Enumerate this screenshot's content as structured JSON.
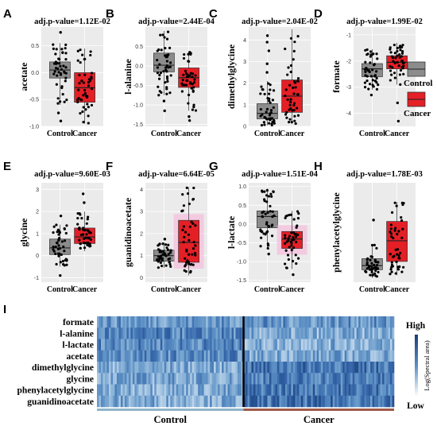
{
  "chart_data": [
    {
      "type": "box",
      "panel": "A",
      "title": "adj.p-value=1.12E-02",
      "ylabel": "acetate",
      "categories": [
        "Control",
        "Cancer"
      ],
      "ylim": [
        -1.0,
        0.85
      ],
      "yticks": [
        0.5,
        0.0,
        -0.5,
        -1.0
      ],
      "ytick_labels": [
        "0.5",
        "0.0",
        "-0.5",
        "-1.0"
      ],
      "series": [
        {
          "name": "Control",
          "q1": -0.1,
          "median": 0.05,
          "q3": 0.2,
          "whisker_low": -0.6,
          "whisker_high": 0.55,
          "outliers": [
            -0.75,
            -0.9,
            0.75
          ]
        },
        {
          "name": "Cancer",
          "q1": -0.55,
          "median": -0.28,
          "q3": 0.0,
          "whisker_low": -0.95,
          "whisker_high": 0.45,
          "outliers": []
        }
      ]
    },
    {
      "type": "box",
      "panel": "B",
      "title": "adj.p-value=2.44E-04",
      "ylabel": "l-alanine",
      "categories": [
        "Control",
        "Cancer"
      ],
      "ylim": [
        -1.55,
        1.0
      ],
      "yticks": [
        0.5,
        0.0,
        -0.5,
        -1.0,
        -1.5
      ],
      "ytick_labels": [
        "0.5",
        "0.0",
        "-0.5",
        "-1.0",
        "-1.5"
      ],
      "series": [
        {
          "name": "Control",
          "q1": -0.15,
          "median": 0.02,
          "q3": 0.33,
          "whisker_low": -0.75,
          "whisker_high": 0.9,
          "outliers": [
            -0.9,
            -1.15
          ]
        },
        {
          "name": "Cancer",
          "q1": -0.55,
          "median": -0.3,
          "q3": -0.05,
          "whisker_low": -1.15,
          "whisker_high": 0.38,
          "outliers": [
            -1.3,
            -1.4
          ]
        }
      ]
    },
    {
      "type": "box",
      "panel": "C",
      "title": "adj.p-value=2.04E-02",
      "ylabel": "dimethylglycine",
      "categories": [
        "Control",
        "Cancer"
      ],
      "ylim": [
        0,
        4.6
      ],
      "yticks": [
        0,
        1,
        2,
        3,
        4
      ],
      "ytick_labels": [
        "0",
        "1",
        "2",
        "3",
        "4"
      ],
      "series": [
        {
          "name": "Control",
          "q1": 0.35,
          "median": 0.6,
          "q3": 1.05,
          "whisker_low": 0.05,
          "whisker_high": 2.1,
          "outliers": [
            2.5,
            2.9,
            3.5,
            3.9,
            4.2
          ]
        },
        {
          "name": "Cancer",
          "q1": 0.65,
          "median": 1.4,
          "q3": 2.15,
          "whisker_low": 0.1,
          "whisker_high": 4.5,
          "outliers": []
        }
      ]
    },
    {
      "type": "box",
      "panel": "D",
      "title": "adj.p-value=1.99E-02",
      "ylabel": "formate",
      "categories": [
        "Control",
        "Cancer"
      ],
      "ylim": [
        -4.5,
        -0.7
      ],
      "yticks": [
        -1,
        -2,
        -3,
        -4
      ],
      "ytick_labels": [
        "-1",
        "-2",
        "-3",
        "-4"
      ],
      "series": [
        {
          "name": "Control",
          "q1": -2.6,
          "median": -2.3,
          "q3": -2.1,
          "whisker_low": -3.1,
          "whisker_high": -1.55,
          "outliers": [
            -3.3
          ]
        },
        {
          "name": "Cancer",
          "q1": -2.3,
          "median": -2.05,
          "q3": -1.8,
          "whisker_low": -2.9,
          "whisker_high": -1.3,
          "outliers": [
            -3.6,
            -4.3
          ]
        }
      ]
    },
    {
      "type": "box",
      "panel": "E",
      "title": "adj.p-value=9.60E-03",
      "ylabel": "glycine",
      "categories": [
        "Control",
        "Cancer"
      ],
      "ylim": [
        -1.2,
        3.3
      ],
      "yticks": [
        3,
        2,
        1,
        0,
        -1
      ],
      "ytick_labels": [
        "3",
        "2",
        "1",
        "0",
        "-1"
      ],
      "series": [
        {
          "name": "Control",
          "q1": 0.05,
          "median": 0.35,
          "q3": 0.75,
          "whisker_low": -0.5,
          "whisker_high": 1.4,
          "outliers": [
            -0.9,
            1.8
          ]
        },
        {
          "name": "Cancer",
          "q1": 0.55,
          "median": 0.85,
          "q3": 1.25,
          "whisker_low": 0.2,
          "whisker_high": 2.0,
          "outliers": [
            2.4,
            2.8
          ]
        }
      ]
    },
    {
      "type": "box",
      "panel": "F",
      "title": "adj.p-value=6.64E-05",
      "ylabel": "guanidinoacetate",
      "categories": [
        "Control",
        "Cancer"
      ],
      "ylim": [
        -0.2,
        4.3
      ],
      "yticks": [
        0,
        1,
        2,
        3,
        4
      ],
      "ytick_labels": [
        "0",
        "1",
        "2",
        "3",
        "4"
      ],
      "series": [
        {
          "name": "Control",
          "q1": 0.75,
          "median": 1.0,
          "q3": 1.25,
          "whisker_low": 0.45,
          "whisker_high": 1.6,
          "outliers": [
            1.75
          ]
        },
        {
          "name": "Cancer",
          "q1": 0.7,
          "median": 1.6,
          "q3": 2.6,
          "whisker_low": 0.1,
          "whisker_high": 4.1,
          "outliers": []
        }
      ]
    },
    {
      "type": "box",
      "panel": "G",
      "title": "adj.p-value=1.51E-04",
      "ylabel": "l-lactate",
      "categories": [
        "Control",
        "Cancer"
      ],
      "ylim": [
        -1.55,
        1.1
      ],
      "yticks": [
        1.0,
        0.5,
        0.0,
        -0.5,
        -1.0,
        -1.5
      ],
      "ytick_labels": [
        "1.0",
        "0.5",
        "0.0",
        "-0.5",
        "-1.0",
        "-1.5"
      ],
      "series": [
        {
          "name": "Control",
          "q1": -0.1,
          "median": 0.2,
          "q3": 0.35,
          "whisker_low": -0.65,
          "whisker_high": 0.95,
          "outliers": [
            -0.8
          ]
        },
        {
          "name": "Cancer",
          "q1": -0.65,
          "median": -0.4,
          "q3": -0.2,
          "whisker_low": -1.2,
          "whisker_high": 0.35,
          "outliers": [
            -1.35
          ]
        }
      ]
    },
    {
      "type": "box",
      "panel": "H",
      "title": "adj.p-value=1.78E-03",
      "ylabel": "phenylacetylglycine",
      "categories": [
        "Control",
        "Cancer"
      ],
      "ylim": [
        0.1,
        3.7
      ],
      "yticks": [],
      "ytick_labels": [],
      "series": [
        {
          "name": "Control",
          "q1": 0.55,
          "median": 0.7,
          "q3": 0.95,
          "whisker_low": 0.25,
          "whisker_high": 1.45,
          "outliers": [
            2.35
          ]
        },
        {
          "name": "Cancer",
          "q1": 0.85,
          "median": 1.6,
          "q3": 2.3,
          "whisker_low": 0.35,
          "whisker_high": 3.0,
          "outliers": []
        }
      ]
    },
    {
      "type": "heatmap",
      "panel": "I",
      "rows": [
        "formate",
        "l-alanine",
        "l-lactate",
        "acetate",
        "dimethylglycine",
        "glycine",
        "phenylacetylglycine",
        "guanidinoacetate"
      ],
      "groups": [
        "Control",
        "Cancer"
      ],
      "colorbar": {
        "high": "High",
        "low": "Low",
        "title": "Log(Spectral area)"
      },
      "colors": {
        "dark": "#1a3f7a",
        "mid": "#5b8fc4",
        "light": "#c8dcef"
      }
    }
  ],
  "legend": {
    "items": [
      {
        "name": "Control",
        "color": "#8c8c8c"
      },
      {
        "name": "Cancer",
        "color": "#e41f26"
      }
    ]
  },
  "colors": {
    "control": "#8c8c8c",
    "cancer": "#e41f26",
    "panel_bg": "#ebebeb",
    "control_bar": "#8fb3c9",
    "cancer_bar": "#a05a4a"
  }
}
